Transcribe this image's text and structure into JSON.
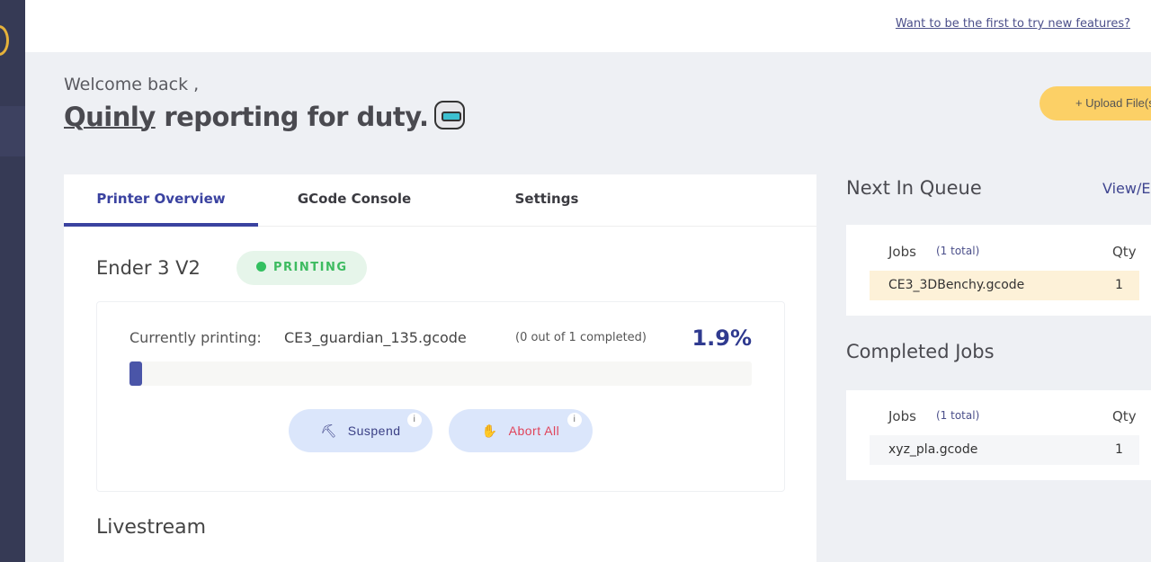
{
  "topbar": {
    "feature_link": "Want to be the first to try new features?"
  },
  "header": {
    "welcome": "Welcome back ,",
    "name": "Quinly",
    "tagline": " reporting for duty.",
    "upload_button": "+ Upload File(s)"
  },
  "tabs": [
    {
      "label": "Printer Overview",
      "active": true
    },
    {
      "label": "GCode Console"
    },
    {
      "label": "Settings"
    }
  ],
  "printer": {
    "name": "Ender 3 V2",
    "status": "PRINTING",
    "status_color": "#33c060",
    "current_label": "Currently printing:",
    "current_file": "CE3_guardian_135.gcode",
    "completed": "(0 out of 1 completed)",
    "progress_label": "1.9%",
    "progress": 1.9,
    "suspend_button": "Suspend",
    "abort_button": "Abort All",
    "info": "i"
  },
  "livestream": "Livestream",
  "queue": {
    "title": "Next In Queue",
    "view_edit": "View/Edit",
    "jobs_header": "Jobs",
    "total": "(1 total)",
    "qty_header": "Qty",
    "rows": [
      {
        "file": "CE3_3DBenchy.gcode",
        "qty": "1"
      }
    ]
  },
  "completed": {
    "title": "Completed Jobs",
    "jobs_header": "Jobs",
    "total": "(1 total)",
    "qty_header": "Qty",
    "rows": [
      {
        "file": "xyz_pla.gcode",
        "qty": "1"
      }
    ]
  }
}
